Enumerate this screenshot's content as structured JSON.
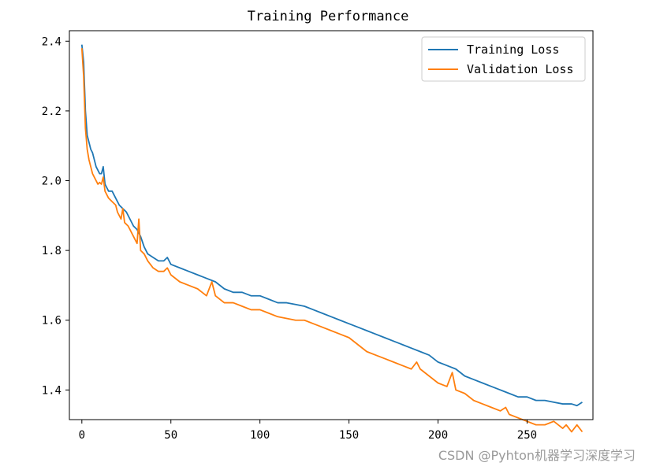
{
  "chart_data": {
    "type": "line",
    "title": "Training Performance",
    "xlabel": "",
    "ylabel": "",
    "xlim": [
      -7,
      287
    ],
    "ylim": [
      1.315,
      2.43
    ],
    "x_ticks": [
      0,
      50,
      100,
      150,
      200,
      250
    ],
    "y_ticks": [
      1.4,
      1.6,
      1.8,
      2.0,
      2.2,
      2.4
    ],
    "grid": false,
    "legend_position": "top-right",
    "series": [
      {
        "name": "Training Loss",
        "color": "#1f77b4",
        "points": [
          [
            0,
            2.39
          ],
          [
            1,
            2.34
          ],
          [
            2,
            2.2
          ],
          [
            3,
            2.13
          ],
          [
            4,
            2.11
          ],
          [
            5,
            2.09
          ],
          [
            6,
            2.08
          ],
          [
            7,
            2.06
          ],
          [
            8,
            2.04
          ],
          [
            9,
            2.03
          ],
          [
            10,
            2.02
          ],
          [
            11,
            2.02
          ],
          [
            12,
            2.04
          ],
          [
            13,
            1.99
          ],
          [
            14,
            1.98
          ],
          [
            15,
            1.97
          ],
          [
            17,
            1.97
          ],
          [
            19,
            1.95
          ],
          [
            21,
            1.93
          ],
          [
            23,
            1.92
          ],
          [
            25,
            1.91
          ],
          [
            27,
            1.89
          ],
          [
            29,
            1.87
          ],
          [
            31,
            1.86
          ],
          [
            33,
            1.84
          ],
          [
            35,
            1.81
          ],
          [
            37,
            1.79
          ],
          [
            40,
            1.78
          ],
          [
            43,
            1.77
          ],
          [
            46,
            1.77
          ],
          [
            48,
            1.78
          ],
          [
            50,
            1.76
          ],
          [
            55,
            1.75
          ],
          [
            60,
            1.74
          ],
          [
            65,
            1.73
          ],
          [
            70,
            1.72
          ],
          [
            75,
            1.71
          ],
          [
            80,
            1.69
          ],
          [
            85,
            1.68
          ],
          [
            90,
            1.68
          ],
          [
            95,
            1.67
          ],
          [
            100,
            1.67
          ],
          [
            105,
            1.66
          ],
          [
            110,
            1.65
          ],
          [
            115,
            1.65
          ],
          [
            120,
            1.645
          ],
          [
            125,
            1.64
          ],
          [
            130,
            1.63
          ],
          [
            135,
            1.62
          ],
          [
            140,
            1.61
          ],
          [
            145,
            1.6
          ],
          [
            150,
            1.59
          ],
          [
            155,
            1.58
          ],
          [
            160,
            1.57
          ],
          [
            165,
            1.56
          ],
          [
            170,
            1.55
          ],
          [
            175,
            1.54
          ],
          [
            180,
            1.53
          ],
          [
            185,
            1.52
          ],
          [
            190,
            1.51
          ],
          [
            195,
            1.5
          ],
          [
            200,
            1.48
          ],
          [
            205,
            1.47
          ],
          [
            210,
            1.46
          ],
          [
            215,
            1.44
          ],
          [
            220,
            1.43
          ],
          [
            225,
            1.42
          ],
          [
            230,
            1.41
          ],
          [
            235,
            1.4
          ],
          [
            240,
            1.39
          ],
          [
            245,
            1.38
          ],
          [
            250,
            1.38
          ],
          [
            255,
            1.37
          ],
          [
            260,
            1.37
          ],
          [
            265,
            1.365
          ],
          [
            270,
            1.36
          ],
          [
            275,
            1.36
          ],
          [
            278,
            1.355
          ],
          [
            281,
            1.365
          ]
        ]
      },
      {
        "name": "Validation Loss",
        "color": "#ff7f0e",
        "points": [
          [
            0,
            2.38
          ],
          [
            1,
            2.3
          ],
          [
            2,
            2.15
          ],
          [
            3,
            2.09
          ],
          [
            4,
            2.06
          ],
          [
            5,
            2.04
          ],
          [
            6,
            2.02
          ],
          [
            7,
            2.01
          ],
          [
            8,
            2.0
          ],
          [
            9,
            1.99
          ],
          [
            10,
            1.995
          ],
          [
            11,
            1.99
          ],
          [
            12,
            2.01
          ],
          [
            13,
            1.97
          ],
          [
            14,
            1.96
          ],
          [
            15,
            1.95
          ],
          [
            17,
            1.94
          ],
          [
            19,
            1.93
          ],
          [
            20,
            1.91
          ],
          [
            22,
            1.89
          ],
          [
            23,
            1.92
          ],
          [
            24,
            1.88
          ],
          [
            26,
            1.87
          ],
          [
            28,
            1.85
          ],
          [
            30,
            1.83
          ],
          [
            31,
            1.82
          ],
          [
            32,
            1.89
          ],
          [
            33,
            1.8
          ],
          [
            35,
            1.79
          ],
          [
            37,
            1.77
          ],
          [
            40,
            1.75
          ],
          [
            43,
            1.74
          ],
          [
            46,
            1.74
          ],
          [
            48,
            1.75
          ],
          [
            50,
            1.73
          ],
          [
            55,
            1.71
          ],
          [
            60,
            1.7
          ],
          [
            65,
            1.69
          ],
          [
            70,
            1.67
          ],
          [
            73,
            1.71
          ],
          [
            75,
            1.67
          ],
          [
            80,
            1.65
          ],
          [
            85,
            1.65
          ],
          [
            90,
            1.64
          ],
          [
            95,
            1.63
          ],
          [
            100,
            1.63
          ],
          [
            105,
            1.62
          ],
          [
            110,
            1.61
          ],
          [
            115,
            1.605
          ],
          [
            120,
            1.6
          ],
          [
            125,
            1.6
          ],
          [
            130,
            1.59
          ],
          [
            135,
            1.58
          ],
          [
            140,
            1.57
          ],
          [
            145,
            1.56
          ],
          [
            150,
            1.55
          ],
          [
            155,
            1.53
          ],
          [
            160,
            1.51
          ],
          [
            165,
            1.5
          ],
          [
            170,
            1.49
          ],
          [
            175,
            1.48
          ],
          [
            180,
            1.47
          ],
          [
            185,
            1.46
          ],
          [
            188,
            1.48
          ],
          [
            190,
            1.46
          ],
          [
            195,
            1.44
          ],
          [
            200,
            1.42
          ],
          [
            205,
            1.41
          ],
          [
            208,
            1.45
          ],
          [
            210,
            1.4
          ],
          [
            215,
            1.39
          ],
          [
            220,
            1.37
          ],
          [
            225,
            1.36
          ],
          [
            230,
            1.35
          ],
          [
            235,
            1.34
          ],
          [
            238,
            1.35
          ],
          [
            240,
            1.33
          ],
          [
            245,
            1.32
          ],
          [
            250,
            1.31
          ],
          [
            255,
            1.3
          ],
          [
            260,
            1.3
          ],
          [
            265,
            1.31
          ],
          [
            270,
            1.29
          ],
          [
            272,
            1.3
          ],
          [
            275,
            1.28
          ],
          [
            278,
            1.3
          ],
          [
            281,
            1.28
          ]
        ]
      }
    ]
  },
  "watermark": "CSDN @Pyhton机器学习深度学习"
}
